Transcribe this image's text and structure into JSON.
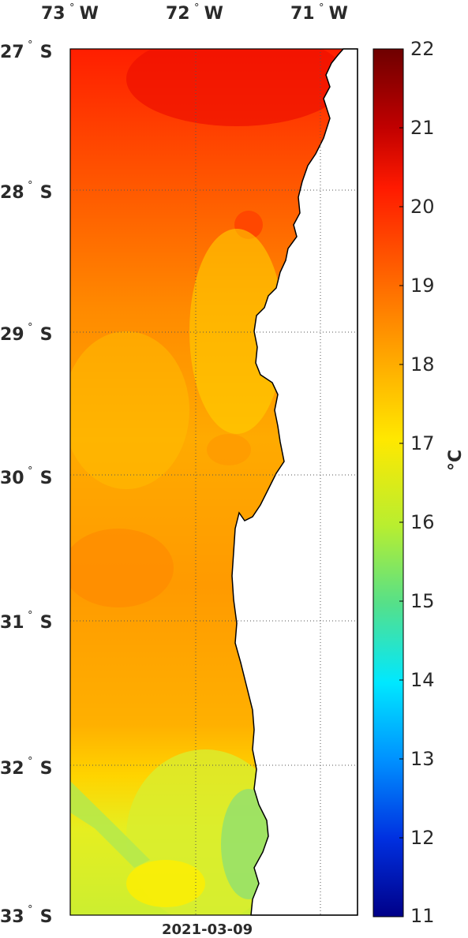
{
  "map": {
    "lon_labels": [
      {
        "num": "73",
        "dir": "W"
      },
      {
        "num": "72",
        "dir": "W"
      },
      {
        "num": "71",
        "dir": "W"
      }
    ],
    "lat_labels": [
      {
        "num": "27",
        "dir": "S"
      },
      {
        "num": "28",
        "dir": "S"
      },
      {
        "num": "29",
        "dir": "S"
      },
      {
        "num": "30",
        "dir": "S"
      },
      {
        "num": "31",
        "dir": "S"
      },
      {
        "num": "32",
        "dir": "S"
      },
      {
        "num": "33",
        "dir": "S"
      }
    ],
    "degree_symbol": "°",
    "date": "2021-03-09"
  },
  "colorbar": {
    "ticks": [
      "22",
      "21",
      "20",
      "19",
      "18",
      "17",
      "16",
      "15",
      "14",
      "13",
      "12",
      "11"
    ],
    "unit": "°C",
    "colors": [
      "#7a0000",
      "#ff0000",
      "#ff8c00",
      "#ffff00",
      "#7fe05a",
      "#00e0ff",
      "#0066ff",
      "#00008f"
    ]
  }
}
